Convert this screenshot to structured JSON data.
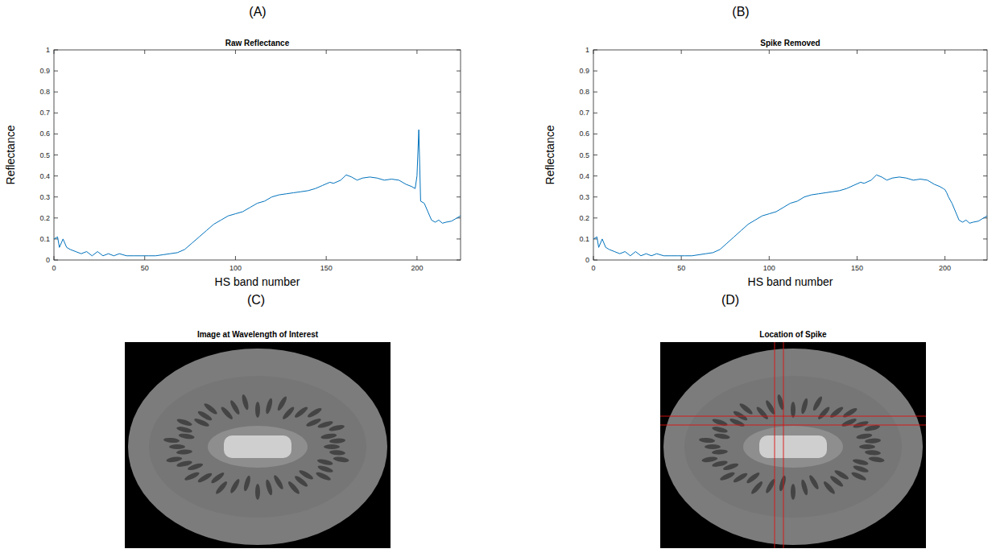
{
  "chart_data": [
    {
      "type": "line",
      "title": "Raw Reflectance",
      "x_label": "HS band number",
      "y_label": "Reflectance",
      "x": [
        0,
        2,
        3,
        5,
        7,
        9,
        12,
        15,
        18,
        21,
        24,
        27,
        30,
        33,
        36,
        40,
        44,
        48,
        52,
        56,
        60,
        64,
        68,
        72,
        76,
        80,
        84,
        88,
        92,
        96,
        100,
        104,
        108,
        112,
        116,
        120,
        124,
        128,
        132,
        136,
        140,
        144,
        148,
        152,
        154,
        158,
        161,
        164,
        167,
        170,
        174,
        178,
        182,
        186,
        190,
        194,
        197,
        199,
        200,
        201,
        202,
        204,
        206,
        208,
        210,
        212,
        214,
        216,
        219,
        222,
        224
      ],
      "series": [
        {
          "color": "#0072bd",
          "values": [
            0.1,
            0.11,
            0.06,
            0.1,
            0.06,
            0.05,
            0.04,
            0.03,
            0.04,
            0.02,
            0.04,
            0.02,
            0.03,
            0.02,
            0.03,
            0.02,
            0.02,
            0.02,
            0.02,
            0.02,
            0.025,
            0.03,
            0.035,
            0.05,
            0.08,
            0.11,
            0.14,
            0.17,
            0.19,
            0.21,
            0.22,
            0.23,
            0.25,
            0.27,
            0.28,
            0.3,
            0.31,
            0.315,
            0.32,
            0.325,
            0.33,
            0.34,
            0.355,
            0.37,
            0.365,
            0.38,
            0.405,
            0.395,
            0.38,
            0.39,
            0.395,
            0.39,
            0.38,
            0.385,
            0.38,
            0.36,
            0.35,
            0.34,
            0.4,
            0.62,
            0.28,
            0.27,
            0.23,
            0.19,
            0.18,
            0.19,
            0.175,
            0.18,
            0.185,
            0.2,
            0.21
          ]
        }
      ],
      "xlim": [
        0,
        224
      ],
      "ylim": [
        0,
        1
      ],
      "xticks": [
        0,
        50,
        100,
        150,
        200
      ],
      "yticks": [
        0,
        0.1,
        0.2,
        0.3,
        0.4,
        0.5,
        0.6,
        0.7,
        0.8,
        0.9,
        1
      ]
    },
    {
      "type": "line",
      "title": "Spike Removed",
      "x_label": "HS band number",
      "y_label": "Reflectance",
      "x": [
        0,
        2,
        3,
        5,
        7,
        9,
        12,
        15,
        18,
        21,
        24,
        27,
        30,
        33,
        36,
        40,
        44,
        48,
        52,
        56,
        60,
        64,
        68,
        72,
        76,
        80,
        84,
        88,
        92,
        96,
        100,
        104,
        108,
        112,
        116,
        120,
        124,
        128,
        132,
        136,
        140,
        144,
        148,
        152,
        154,
        158,
        161,
        164,
        167,
        170,
        174,
        178,
        182,
        186,
        190,
        194,
        197,
        199,
        200,
        201,
        202,
        204,
        206,
        208,
        210,
        212,
        214,
        216,
        219,
        222,
        224
      ],
      "series": [
        {
          "color": "#0072bd",
          "values": [
            0.1,
            0.11,
            0.06,
            0.1,
            0.06,
            0.05,
            0.04,
            0.03,
            0.04,
            0.02,
            0.04,
            0.02,
            0.03,
            0.02,
            0.03,
            0.02,
            0.02,
            0.02,
            0.02,
            0.02,
            0.025,
            0.03,
            0.035,
            0.05,
            0.08,
            0.11,
            0.14,
            0.17,
            0.19,
            0.21,
            0.22,
            0.23,
            0.25,
            0.27,
            0.28,
            0.3,
            0.31,
            0.315,
            0.32,
            0.325,
            0.33,
            0.34,
            0.355,
            0.37,
            0.365,
            0.38,
            0.405,
            0.395,
            0.38,
            0.39,
            0.395,
            0.39,
            0.38,
            0.385,
            0.38,
            0.36,
            0.35,
            0.34,
            0.335,
            0.32,
            0.3,
            0.27,
            0.23,
            0.19,
            0.18,
            0.19,
            0.175,
            0.18,
            0.185,
            0.2,
            0.21
          ]
        }
      ],
      "xlim": [
        0,
        224
      ],
      "ylim": [
        0,
        1
      ],
      "xticks": [
        0,
        50,
        100,
        150,
        200
      ],
      "yticks": [
        0,
        0.1,
        0.2,
        0.3,
        0.4,
        0.5,
        0.6,
        0.7,
        0.8,
        0.9,
        1
      ]
    }
  ],
  "panel_labels": [
    "(A)",
    "(B)",
    "(C)",
    "(D)"
  ],
  "images": [
    {
      "title": "Image at Wavelength of Interest"
    },
    {
      "title": "Location of Spike"
    }
  ]
}
